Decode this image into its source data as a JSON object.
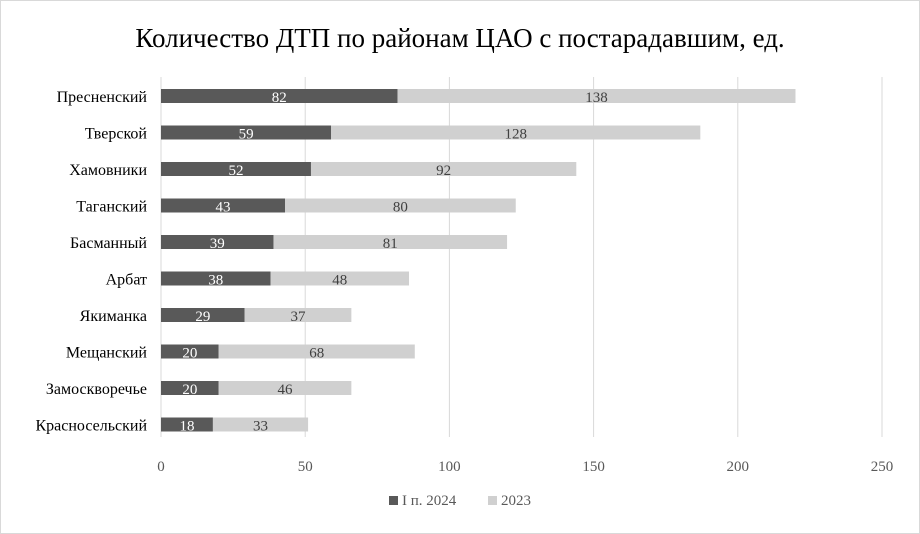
{
  "chart_data": {
    "type": "bar",
    "orientation": "horizontal",
    "stacked": true,
    "title": "Количество ДТП по районам ЦАО с постарадавшим,  ед.",
    "categories": [
      "Пресненский",
      "Тверской",
      "Хамовники",
      "Таганский",
      "Басманный",
      "Арбат",
      "Якиманка",
      "Мещанский",
      "Замоскворечье",
      "Красносельский"
    ],
    "series": [
      {
        "name": "I п. 2024",
        "color": "#595959",
        "values": [
          82,
          59,
          52,
          43,
          39,
          38,
          29,
          20,
          20,
          18
        ]
      },
      {
        "name": "2023",
        "color": "#d0d0d0",
        "values": [
          138,
          128,
          92,
          80,
          81,
          48,
          37,
          68,
          46,
          33
        ]
      }
    ],
    "xlim": [
      0,
      250
    ],
    "xticks": [
      0,
      50,
      100,
      150,
      200,
      250
    ],
    "xgrid": true,
    "legend": "bottom",
    "data_labels": true
  }
}
